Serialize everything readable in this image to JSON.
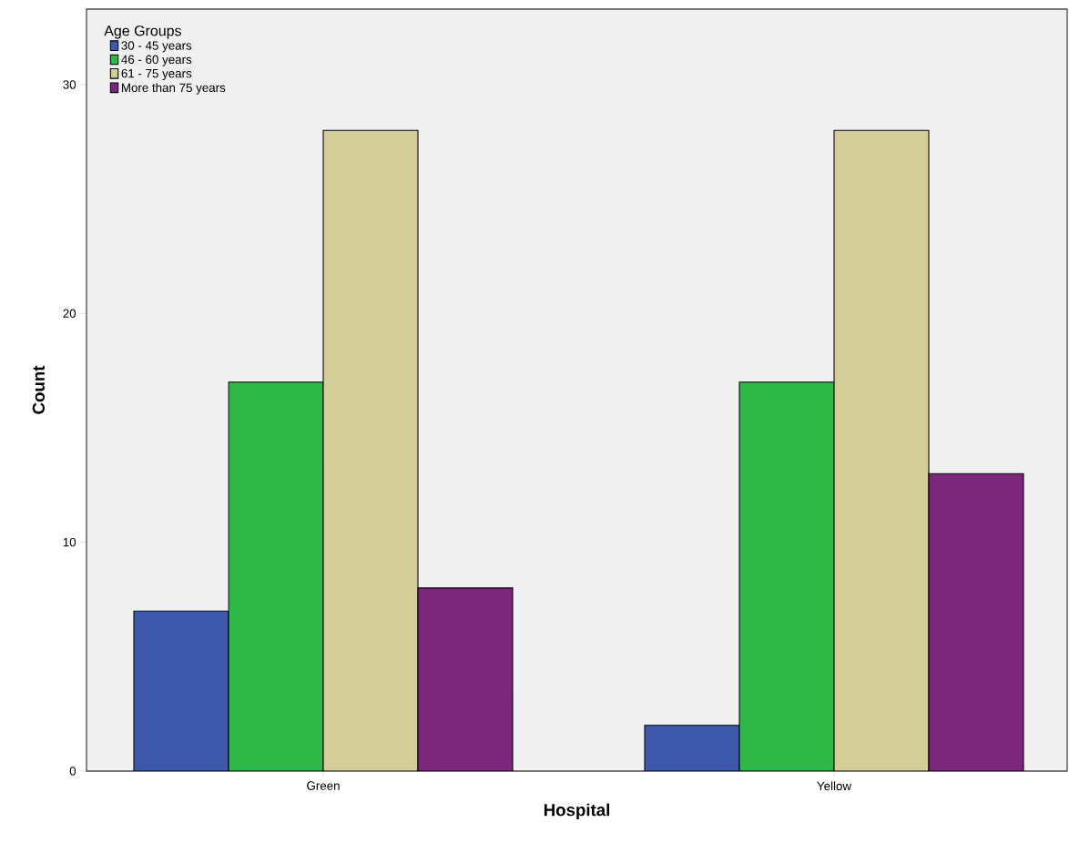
{
  "chart_data": {
    "type": "bar",
    "xlabel": "Hospital",
    "ylabel": "Count",
    "legend_title": "Age Groups",
    "categories": [
      "Green",
      "Yellow"
    ],
    "series": [
      {
        "name": "30 - 45 years",
        "color": "#3e58ac",
        "values": [
          7,
          2
        ]
      },
      {
        "name": "46 - 60 years",
        "color": "#2eb848",
        "values": [
          17,
          17
        ]
      },
      {
        "name": "61 - 75 years",
        "color": "#d3ce97",
        "values": [
          28,
          28
        ]
      },
      {
        "name": "More than 75 years",
        "color": "#7b277d",
        "values": [
          8,
          13
        ]
      }
    ],
    "ylim": [
      0,
      33.3
    ],
    "yticks": [
      0,
      10,
      20,
      30
    ],
    "grid": false,
    "legend": "top left"
  }
}
